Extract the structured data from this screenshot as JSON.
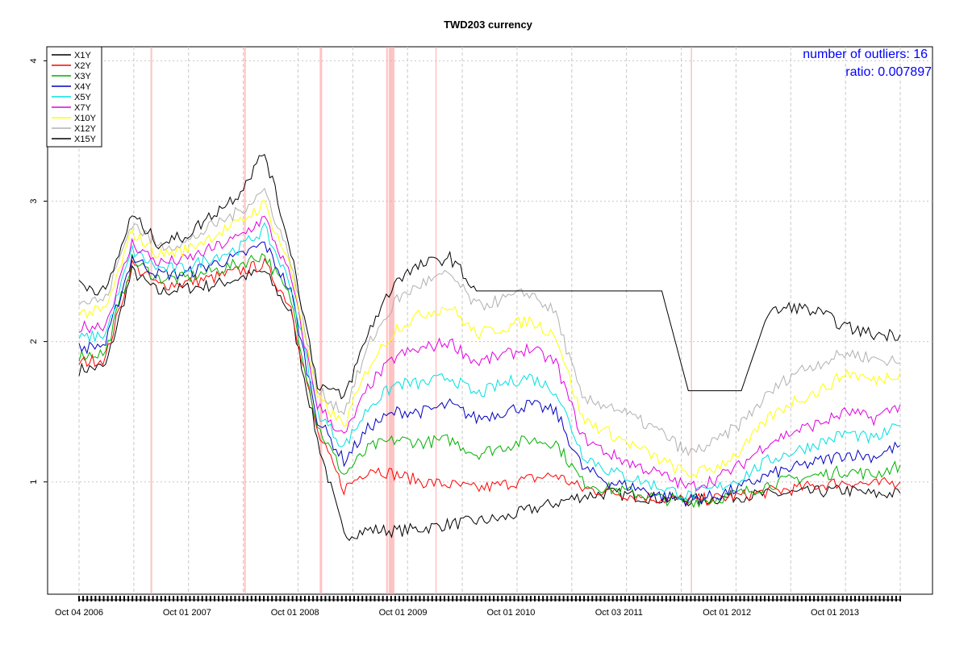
{
  "chart_data": {
    "type": "line",
    "title": "TWD203 currency",
    "xlabel": "",
    "ylabel": "",
    "x_ticks": [
      "Oct 04 2006",
      "Oct 01 2007",
      "Oct 01 2008",
      "Oct 01 2009",
      "Oct 01 2010",
      "Oct 03 2011",
      "Oct 01 2012",
      "Oct 01 2013"
    ],
    "y_ticks": [
      1,
      2,
      3,
      4
    ],
    "ylim": [
      0.2,
      4.1
    ],
    "grid": true,
    "legend_position": "top-left",
    "annotations": [
      "number of outliers:  16",
      "ratio:  0.007897"
    ],
    "x": [
      "2006-10",
      "2007-01",
      "2007-04",
      "2007-07",
      "2007-10",
      "2008-01",
      "2008-04",
      "2008-07",
      "2008-10",
      "2009-01",
      "2009-04",
      "2009-07",
      "2009-10",
      "2010-01",
      "2010-04",
      "2010-07",
      "2010-10",
      "2011-01",
      "2011-04",
      "2011-07",
      "2011-10",
      "2012-01",
      "2012-04",
      "2012-07",
      "2012-10",
      "2013-01",
      "2013-04",
      "2013-07",
      "2013-10",
      "2014-01",
      "2014-04",
      "2014-07"
    ],
    "series": [
      {
        "name": "X1Y",
        "color": "#000000",
        "values": [
          1.8,
          1.82,
          2.5,
          2.35,
          2.38,
          2.4,
          2.45,
          2.5,
          2.2,
          1.3,
          0.62,
          0.66,
          0.65,
          0.67,
          0.7,
          0.72,
          0.74,
          0.8,
          0.85,
          0.9,
          0.92,
          0.9,
          0.88,
          0.87,
          0.88,
          0.9,
          0.91,
          0.92,
          0.93,
          0.94,
          0.91,
          0.92
        ]
      },
      {
        "name": "X2Y",
        "color": "#ff0000",
        "values": [
          1.85,
          1.88,
          2.55,
          2.4,
          2.42,
          2.45,
          2.5,
          2.55,
          2.25,
          1.35,
          0.95,
          1.1,
          1.05,
          1.0,
          0.98,
          0.95,
          0.98,
          1.02,
          1.05,
          0.95,
          0.93,
          0.9,
          0.88,
          0.87,
          0.88,
          0.9,
          0.93,
          0.95,
          0.98,
          1.0,
          0.98,
          1.0
        ]
      },
      {
        "name": "X3Y",
        "color": "#00b000",
        "values": [
          1.9,
          1.92,
          2.58,
          2.45,
          2.45,
          2.5,
          2.55,
          2.62,
          2.3,
          1.4,
          1.05,
          1.25,
          1.3,
          1.28,
          1.3,
          1.2,
          1.25,
          1.3,
          1.28,
          1.0,
          0.95,
          0.92,
          0.88,
          0.86,
          0.88,
          0.92,
          0.98,
          1.02,
          1.05,
          1.08,
          1.05,
          1.12
        ]
      },
      {
        "name": "X4Y",
        "color": "#0000c0",
        "values": [
          1.95,
          1.98,
          2.6,
          2.48,
          2.48,
          2.55,
          2.6,
          2.7,
          2.35,
          1.45,
          1.15,
          1.4,
          1.5,
          1.5,
          1.55,
          1.45,
          1.5,
          1.55,
          1.5,
          1.1,
          1.0,
          0.96,
          0.9,
          0.87,
          0.9,
          0.96,
          1.05,
          1.1,
          1.15,
          1.2,
          1.18,
          1.26
        ]
      },
      {
        "name": "X5Y",
        "color": "#00e0e0",
        "values": [
          2.02,
          2.05,
          2.65,
          2.52,
          2.52,
          2.6,
          2.66,
          2.8,
          2.4,
          1.5,
          1.25,
          1.55,
          1.7,
          1.7,
          1.75,
          1.62,
          1.7,
          1.75,
          1.65,
          1.2,
          1.08,
          1.02,
          0.96,
          0.9,
          0.95,
          1.03,
          1.15,
          1.22,
          1.28,
          1.35,
          1.3,
          1.4
        ]
      },
      {
        "name": "X7Y",
        "color": "#e000e0",
        "values": [
          2.1,
          2.12,
          2.7,
          2.56,
          2.58,
          2.66,
          2.74,
          2.88,
          2.45,
          1.55,
          1.32,
          1.7,
          1.9,
          1.95,
          2.0,
          1.85,
          1.9,
          1.95,
          1.85,
          1.32,
          1.2,
          1.12,
          1.05,
          0.96,
          1.02,
          1.12,
          1.28,
          1.36,
          1.42,
          1.5,
          1.45,
          1.55
        ]
      },
      {
        "name": "X10Y",
        "color": "#ffff00",
        "values": [
          2.2,
          2.22,
          2.78,
          2.62,
          2.65,
          2.75,
          2.84,
          2.98,
          2.52,
          1.6,
          1.4,
          1.85,
          2.1,
          2.2,
          2.25,
          2.05,
          2.1,
          2.15,
          2.05,
          1.45,
          1.35,
          1.25,
          1.15,
          1.05,
          1.1,
          1.22,
          1.45,
          1.58,
          1.65,
          1.78,
          1.72,
          1.78
        ]
      },
      {
        "name": "X12Y",
        "color": "#b0b0b0",
        "values": [
          2.28,
          2.3,
          2.85,
          2.68,
          2.7,
          2.82,
          2.92,
          3.08,
          2.58,
          1.65,
          1.5,
          2.0,
          2.3,
          2.42,
          2.48,
          2.25,
          2.3,
          2.35,
          2.2,
          1.58,
          1.55,
          1.45,
          1.35,
          1.2,
          1.28,
          1.42,
          1.62,
          1.78,
          1.85,
          1.92,
          1.88,
          1.85
        ]
      },
      {
        "name": "X15Y",
        "color": "#000000",
        "values": [
          2.42,
          2.35,
          2.9,
          2.7,
          2.75,
          2.9,
          3.05,
          3.35,
          2.65,
          1.7,
          1.6,
          2.1,
          2.45,
          2.55,
          2.6,
          2.36,
          2.36,
          2.36,
          2.36,
          2.36,
          2.36,
          2.36,
          2.36,
          1.65,
          1.65,
          1.65,
          2.2,
          2.25,
          2.2,
          2.1,
          2.05,
          2.05
        ]
      }
    ]
  }
}
